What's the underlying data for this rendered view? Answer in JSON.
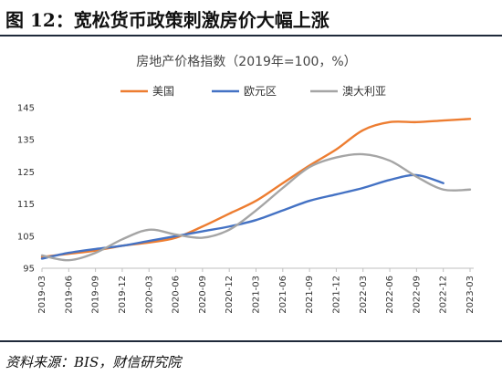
{
  "figure": {
    "title": "图 12：宽松货币政策刺激房价大幅上涨",
    "source": "资料来源：BIS，财信研究院"
  },
  "colors": {
    "us": "#ED7D31",
    "euro": "#4472C4",
    "aus": "#A5A5A5",
    "rule": "#1f2a3a"
  },
  "chart_data": {
    "type": "line",
    "title": "房地产价格指数（2019年=100，%）",
    "xlabel": "",
    "ylabel": "",
    "ylim": [
      95,
      145
    ],
    "yticks": [
      95,
      105,
      115,
      125,
      135,
      145
    ],
    "grid": false,
    "legend_position": "top",
    "x": [
      "2019-03",
      "2019-06",
      "2019-09",
      "2019-12",
      "2020-03",
      "2020-06",
      "2020-09",
      "2020-12",
      "2021-03",
      "2021-06",
      "2021-09",
      "2021-12",
      "2022-03",
      "2022-06",
      "2022-09",
      "2022-12",
      "2023-03"
    ],
    "series": [
      {
        "name": "美国",
        "color_key": "us",
        "values": [
          98.5,
          99.5,
          100.5,
          102.0,
          103.0,
          104.5,
          108.0,
          112.0,
          116.0,
          121.5,
          127.0,
          132.0,
          138.0,
          140.5,
          140.5,
          141.0,
          141.5
        ]
      },
      {
        "name": "欧元区",
        "color_key": "euro",
        "values": [
          98.0,
          99.8,
          101.0,
          102.0,
          103.5,
          105.0,
          106.5,
          108.0,
          110.0,
          113.0,
          116.0,
          118.0,
          120.0,
          122.5,
          124.0,
          121.5,
          null
        ]
      },
      {
        "name": "澳大利亚",
        "color_key": "aus",
        "values": [
          99.0,
          97.5,
          99.8,
          104.0,
          107.0,
          105.5,
          104.5,
          107.0,
          113.0,
          120.0,
          126.5,
          129.5,
          130.5,
          128.5,
          123.5,
          119.5,
          119.5
        ]
      }
    ]
  }
}
